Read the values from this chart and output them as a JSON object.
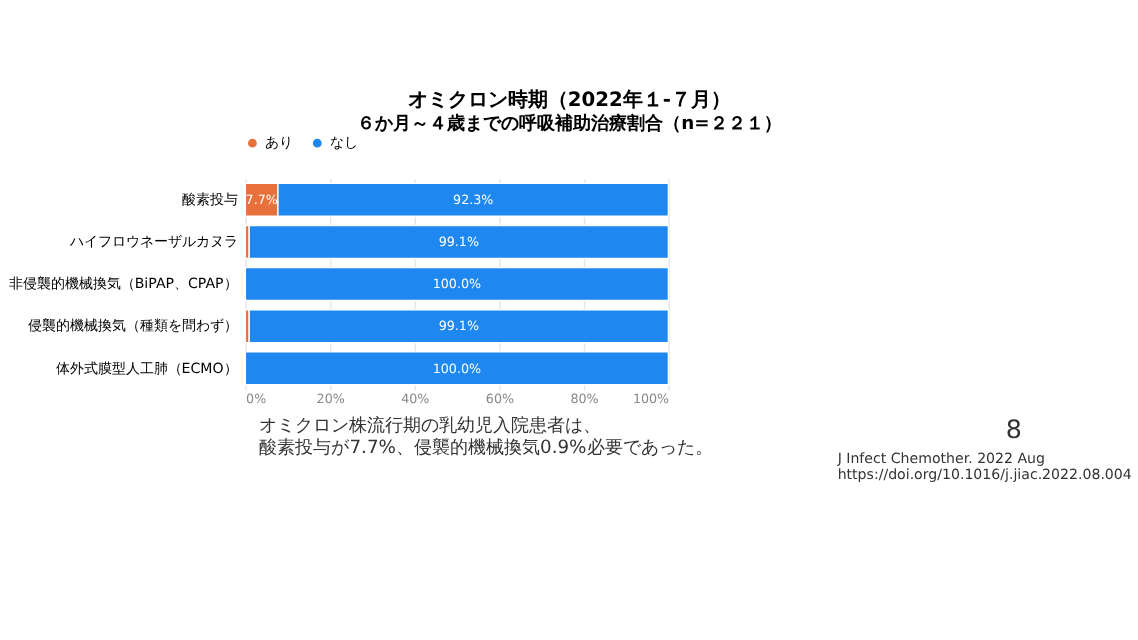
{
  "chart_data": {
    "type": "bar",
    "orientation": "horizontal",
    "stacked": true,
    "title": "オミクロン時期（2022年１-７月）",
    "subtitle": "６か月～４歳までの呼吸補助治療割合（n=２２１）",
    "categories": [
      "酸素投与",
      "ハイフロウネーザルカヌラ",
      "非侵襲的機械換気（BiPAP、CPAP）",
      "侵襲的機械換気（種類を問わず）",
      "体外式膜型人工肺（ECMO）"
    ],
    "series": [
      {
        "name": "あり",
        "color": "#e8703a",
        "values": [
          7.7,
          0.9,
          0,
          0.9,
          0
        ],
        "value_labels": [
          "7.7%",
          null,
          null,
          null,
          null
        ]
      },
      {
        "name": "なし",
        "color": "#1e88f0",
        "values": [
          92.3,
          99.1,
          100,
          99.1,
          100
        ],
        "value_labels": [
          "92.3%",
          "99.1%",
          "100.0%",
          "99.1%",
          "100.0%"
        ]
      }
    ],
    "xlim": [
      0,
      100
    ],
    "xticks": [
      {
        "value": 0,
        "label": "0%"
      },
      {
        "value": 20,
        "label": "20%"
      },
      {
        "value": 40,
        "label": "40%"
      },
      {
        "value": 60,
        "label": "60%"
      },
      {
        "value": 80,
        "label": "80%"
      },
      {
        "value": 100,
        "label": "100%"
      }
    ],
    "grid": "x",
    "legend": "top left",
    "annotations": [
      "オミクロン株流行期の乳幼児入院患者は、",
      "酸素投与が7.7%、侵襲的機械換気0.9%必要であった。",
      "J Infect Chemother. 2022 Aug",
      "https://doi.org/10.1016/j.jiac.2022.08.004",
      "8"
    ]
  }
}
